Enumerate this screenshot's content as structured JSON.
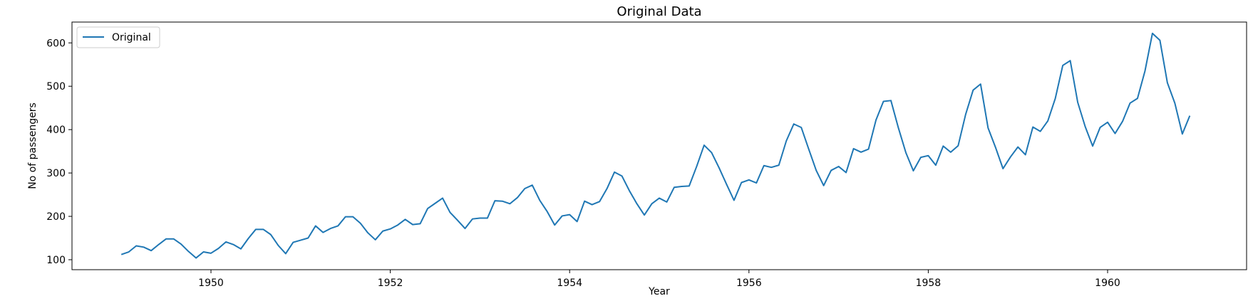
{
  "chart_data": {
    "type": "line",
    "title": "Original Data",
    "xlabel": "Year",
    "ylabel": "No of passengers",
    "xlim": [
      1948.45,
      1961.55
    ],
    "ylim": [
      77,
      648
    ],
    "xticks": [
      1950,
      1952,
      1954,
      1956,
      1958,
      1960
    ],
    "xtick_labels": [
      "1950",
      "1952",
      "1954",
      "1956",
      "1958",
      "1960"
    ],
    "yticks": [
      100,
      200,
      300,
      400,
      500,
      600
    ],
    "ytick_labels": [
      "100",
      "200",
      "300",
      "400",
      "500",
      "600"
    ],
    "grid": false,
    "legend_position": "upper-left",
    "color": "#1f77b4",
    "series": [
      {
        "name": "Original",
        "x_start": "1949-01",
        "x_step": "1 month",
        "values": [
          112,
          118,
          132,
          129,
          121,
          135,
          148,
          148,
          136,
          119,
          104,
          118,
          115,
          126,
          141,
          135,
          125,
          149,
          170,
          170,
          158,
          133,
          114,
          140,
          145,
          150,
          178,
          163,
          172,
          178,
          199,
          199,
          184,
          162,
          146,
          166,
          171,
          180,
          193,
          181,
          183,
          218,
          230,
          242,
          209,
          191,
          172,
          194,
          196,
          196,
          236,
          235,
          229,
          243,
          264,
          272,
          237,
          211,
          180,
          201,
          204,
          188,
          235,
          227,
          234,
          264,
          302,
          293,
          259,
          229,
          203,
          229,
          242,
          233,
          267,
          269,
          270,
          315,
          364,
          347,
          312,
          274,
          237,
          278,
          284,
          277,
          317,
          313,
          318,
          374,
          413,
          405,
          355,
          306,
          271,
          306,
          315,
          301,
          356,
          348,
          355,
          422,
          465,
          467,
          404,
          347,
          305,
          336,
          340,
          318,
          362,
          348,
          363,
          435,
          491,
          505,
          404,
          359,
          310,
          337,
          360,
          342,
          406,
          396,
          420,
          472,
          548,
          559,
          463,
          407,
          362,
          405,
          417,
          391,
          419,
          461,
          472,
          535,
          622,
          606,
          508,
          461,
          390,
          432
        ]
      }
    ]
  }
}
